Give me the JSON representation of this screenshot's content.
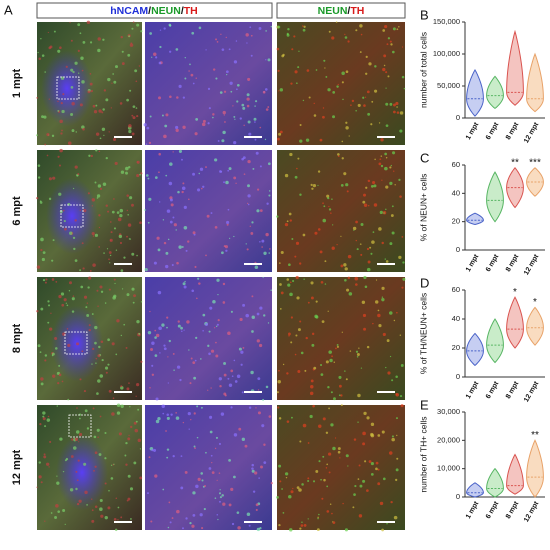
{
  "figure": {
    "panel_a": "A",
    "header_1": [
      {
        "text": "hNCAM",
        "color": "#1f2fd8"
      },
      {
        "text": "/",
        "color": "#111111"
      },
      {
        "text": "NEUN",
        "color": "#1b9a2a"
      },
      {
        "text": "/",
        "color": "#111111"
      },
      {
        "text": "TH",
        "color": "#d81b1b"
      }
    ],
    "header_2": [
      {
        "text": "NEUN",
        "color": "#1b9a2a"
      },
      {
        "text": "/",
        "color": "#111111"
      },
      {
        "text": "TH",
        "color": "#d81b1b"
      }
    ],
    "rows": [
      "1 mpt",
      "6 mpt",
      "8 mpt",
      "12 mpt"
    ]
  },
  "chart_data": [
    {
      "type": "violin",
      "panel": "B",
      "y_label": "number of total cells",
      "categories": [
        "1 mpt",
        "6 mpt",
        "8 mpt",
        "12 mpt"
      ],
      "colors": [
        "#4a63c8",
        "#57b563",
        "#d9534f",
        "#e8a268"
      ],
      "fills": [
        "#c6cef2",
        "#c9ecc9",
        "#f4c4c0",
        "#f9dcc0"
      ],
      "min": [
        3000,
        15000,
        20000,
        10000
      ],
      "median": [
        30000,
        35000,
        40000,
        30000
      ],
      "max": [
        75000,
        65000,
        135000,
        100000
      ],
      "annotations": [
        null,
        null,
        null,
        null
      ],
      "ylim": [
        0,
        150000
      ],
      "yticks": [
        0,
        {
          "value": 50000,
          "label": "50,000"
        },
        {
          "value": 100000,
          "label": "100,000"
        },
        {
          "value": 150000,
          "label": "150,000"
        }
      ]
    },
    {
      "type": "violin",
      "panel": "C",
      "y_label": "% of NEUN+ cells",
      "categories": [
        "1 mpt",
        "6 mpt",
        "8 mpt",
        "12 mpt"
      ],
      "colors": [
        "#4a63c8",
        "#57b563",
        "#d9534f",
        "#e8a268"
      ],
      "fills": [
        "#c6cef2",
        "#c9ecc9",
        "#f4c4c0",
        "#f9dcc0"
      ],
      "min": [
        18,
        20,
        30,
        38
      ],
      "median": [
        21,
        35,
        44,
        48
      ],
      "max": [
        26,
        55,
        58,
        58
      ],
      "annotations": [
        null,
        null,
        "**",
        "***"
      ],
      "ylim": [
        0,
        60
      ],
      "yticks": [
        0,
        20,
        40,
        60
      ]
    },
    {
      "type": "violin",
      "panel": "D",
      "y_label": "% of TH/NEUN+ cells",
      "categories": [
        "1 mpt",
        "6 mpt",
        "8 mpt",
        "12 mpt"
      ],
      "colors": [
        "#4a63c8",
        "#57b563",
        "#d9534f",
        "#e8a268"
      ],
      "fills": [
        "#c6cef2",
        "#c9ecc9",
        "#f4c4c0",
        "#f9dcc0"
      ],
      "min": [
        8,
        10,
        20,
        22
      ],
      "median": [
        18,
        22,
        33,
        34
      ],
      "max": [
        30,
        40,
        55,
        48
      ],
      "annotations": [
        null,
        null,
        "*",
        "*"
      ],
      "ylim": [
        0,
        60
      ],
      "yticks": [
        0,
        20,
        40,
        60
      ]
    },
    {
      "type": "violin",
      "panel": "E",
      "y_label": "number of TH+ cells",
      "categories": [
        "1 mpt",
        "6 mpt",
        "8 mpt",
        "12 mpt"
      ],
      "colors": [
        "#4a63c8",
        "#57b563",
        "#d9534f",
        "#e8a268"
      ],
      "fills": [
        "#c6cef2",
        "#c9ecc9",
        "#f4c4c0",
        "#f9dcc0"
      ],
      "min": [
        0,
        0,
        1000,
        0
      ],
      "median": [
        1500,
        3000,
        4000,
        7000
      ],
      "max": [
        5000,
        10000,
        15000,
        20000
      ],
      "annotations": [
        null,
        null,
        null,
        "**"
      ],
      "ylim": [
        0,
        30000
      ],
      "yticks": [
        0,
        {
          "value": 10000,
          "label": "10,000"
        },
        {
          "value": 20000,
          "label": "20,000"
        },
        {
          "value": 30000,
          "label": "30,000"
        }
      ]
    }
  ]
}
